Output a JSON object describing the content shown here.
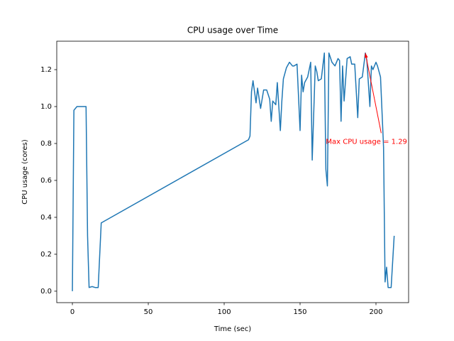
{
  "chart_data": {
    "type": "line",
    "title": "CPU usage over Time",
    "x_label": "Time (sec)",
    "y_label": "CPU usage (cores)",
    "x": [
      0,
      1,
      3,
      9,
      10,
      11,
      13,
      15,
      17,
      19,
      116,
      117,
      118,
      119,
      121,
      122,
      124,
      126,
      128,
      130,
      131,
      132,
      134,
      135,
      137,
      138,
      139,
      141,
      143,
      145,
      146,
      148,
      150,
      151,
      152,
      153,
      155,
      157,
      158,
      160,
      161,
      162,
      164,
      166,
      167,
      168,
      169,
      171,
      173,
      175,
      176,
      177,
      178,
      179,
      181,
      183,
      184,
      186,
      188,
      189,
      191,
      193,
      194,
      196,
      197,
      198,
      200,
      201,
      203,
      205,
      206,
      207,
      208,
      210,
      212
    ],
    "series": [
      {
        "name": "CPU usage",
        "color": "#1f77b4",
        "values": [
          0.0,
          0.98,
          1.0,
          1.0,
          0.3,
          0.02,
          0.025,
          0.02,
          0.02,
          0.37,
          0.82,
          0.84,
          1.08,
          1.14,
          1.02,
          1.1,
          0.99,
          1.09,
          1.09,
          1.04,
          0.92,
          1.03,
          1.01,
          1.13,
          0.87,
          1.03,
          1.15,
          1.21,
          1.24,
          1.22,
          1.22,
          1.23,
          0.87,
          1.17,
          1.08,
          1.13,
          1.16,
          1.24,
          0.71,
          1.22,
          1.19,
          1.14,
          1.15,
          1.29,
          0.66,
          0.57,
          1.29,
          1.24,
          1.22,
          1.26,
          1.25,
          0.92,
          1.22,
          1.03,
          1.26,
          1.27,
          1.23,
          1.23,
          0.94,
          1.15,
          1.16,
          1.29,
          1.25,
          1.0,
          1.22,
          1.2,
          1.24,
          1.22,
          1.16,
          0.78,
          0.05,
          0.13,
          0.02,
          0.02,
          0.3
        ]
      }
    ],
    "xlim": [
      -10.3,
      221.5
    ],
    "ylim": [
      -0.062,
      1.354
    ],
    "xticks": [
      0,
      50,
      100,
      150,
      200
    ],
    "yticks": [
      {
        "value": 0,
        "label": "0.0"
      },
      {
        "value": 0.2,
        "label": "0.2"
      },
      {
        "value": 0.4,
        "label": "0.4"
      },
      {
        "value": 0.6,
        "label": "0.6"
      },
      {
        "value": 0.8,
        "label": "0.8"
      },
      {
        "value": 1.0,
        "label": "1.0"
      },
      {
        "value": 1.2,
        "label": "1.2"
      }
    ],
    "grid": false,
    "annotation": {
      "text": "Max CPU usage = 1.29",
      "xy": [
        193,
        1.29
      ],
      "xytext": [
        167,
        0.81
      ],
      "color": "red"
    }
  }
}
